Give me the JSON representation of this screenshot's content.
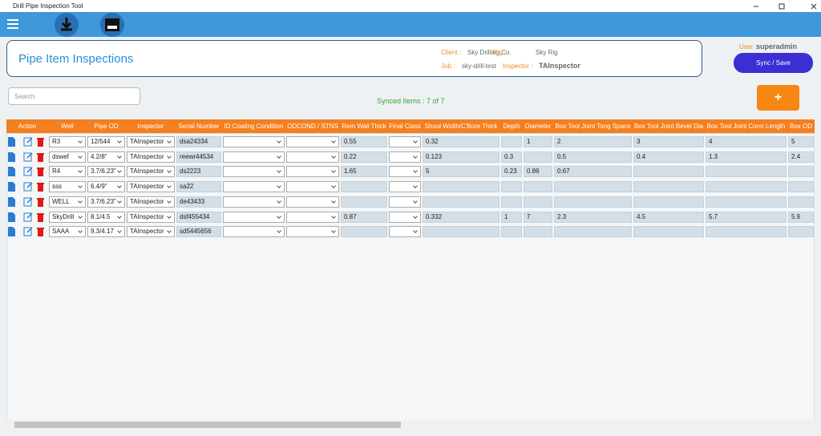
{
  "window": {
    "title": "Drill Pipe Inspection Tool"
  },
  "header": {
    "title": "Pipe Item Inspections",
    "client_label": "Client :",
    "client": "Sky Drilling Co.",
    "rig_label": "Rig :",
    "rig": "Sky Rig",
    "job_label": "Job :",
    "job": "sky-drill-test",
    "inspector_label": "Inspector :",
    "inspector": "TAInspector",
    "user_label": "User :",
    "user": "superadmin",
    "sync_button": "Sync / Save"
  },
  "toolbar": {
    "search_placeholder": "Search",
    "synced": "Synced Items : 7 of 7",
    "add_button": "+"
  },
  "table": {
    "headers": [
      "Action",
      "Well",
      "Pipe OD",
      "Inspector",
      "Serial Number",
      "ID Coating Condition",
      "ODCOND / STNS",
      "Rem Wall Thick",
      "Final Class",
      "Shoul Width/C'Bore Thick",
      "Depth",
      "Diameter",
      "Box Tool Joint Tong Space",
      "Box Tool Joint Bevel Dia",
      "Box Tool Joint Conn Length",
      "Box OD"
    ],
    "rows": [
      [
        "R3",
        "12/544",
        "TAInspector",
        "dsa24334",
        null,
        null,
        0.55,
        null,
        0.32,
        null,
        1,
        2,
        3,
        4,
        5
      ],
      [
        "dswef",
        "4.2/8\"",
        "TAInspector",
        "reewr44534",
        null,
        null,
        0.22,
        null,
        0.123,
        0.3,
        null,
        0.5,
        0.4,
        1.3,
        2.4
      ],
      [
        "R4",
        "3.7/6.23\"",
        "TAInspector",
        "ds2223",
        null,
        null,
        1.65,
        null,
        5,
        0.23,
        0.86,
        0.67,
        null,
        null,
        null
      ],
      [
        "sss",
        "6.4/9\"",
        "TAInspector",
        "sa22",
        null,
        null,
        null,
        null,
        null,
        null,
        null,
        null,
        null,
        null,
        null
      ],
      [
        "WELL",
        "3.7/6.23\"",
        "TAInspector",
        "de43433",
        null,
        null,
        null,
        null,
        null,
        null,
        null,
        null,
        null,
        null,
        null
      ],
      [
        "SkyDrill",
        "8.1/4.5",
        "TAInspector",
        "dsf455434",
        null,
        null,
        0.87,
        null,
        0.332,
        1,
        7,
        2.3,
        4.5,
        5.7,
        5.9
      ],
      [
        "SAAA",
        "9.3/4.17",
        "TAInspector",
        "sd5445656",
        null,
        null,
        null,
        null,
        null,
        null,
        null,
        null,
        null,
        null,
        null
      ]
    ]
  }
}
